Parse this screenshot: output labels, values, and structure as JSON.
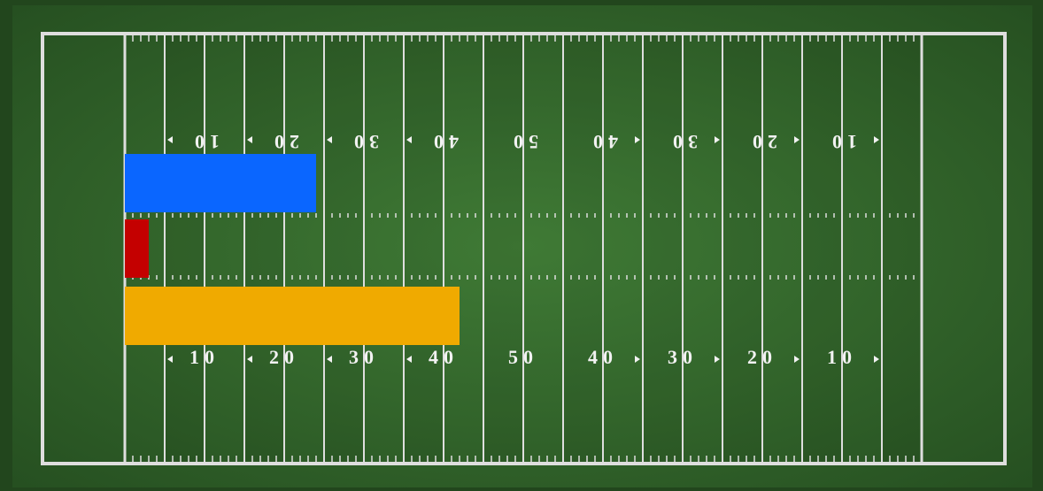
{
  "chart_data": {
    "type": "bar",
    "orientation": "horizontal",
    "categories": [
      null,
      null,
      null
    ],
    "values": [
      24,
      3,
      42
    ],
    "colors": [
      "#0a66ff",
      "#c40000",
      "#f0aa00"
    ],
    "xlim": [
      0,
      100
    ],
    "xticks": [
      10,
      20,
      30,
      40,
      50,
      {
        "value": 60,
        "label": "40"
      },
      {
        "value": 70,
        "label": "30"
      },
      {
        "value": 80,
        "label": "20"
      },
      {
        "value": 90,
        "label": "10"
      }
    ],
    "grid": true
  }
}
